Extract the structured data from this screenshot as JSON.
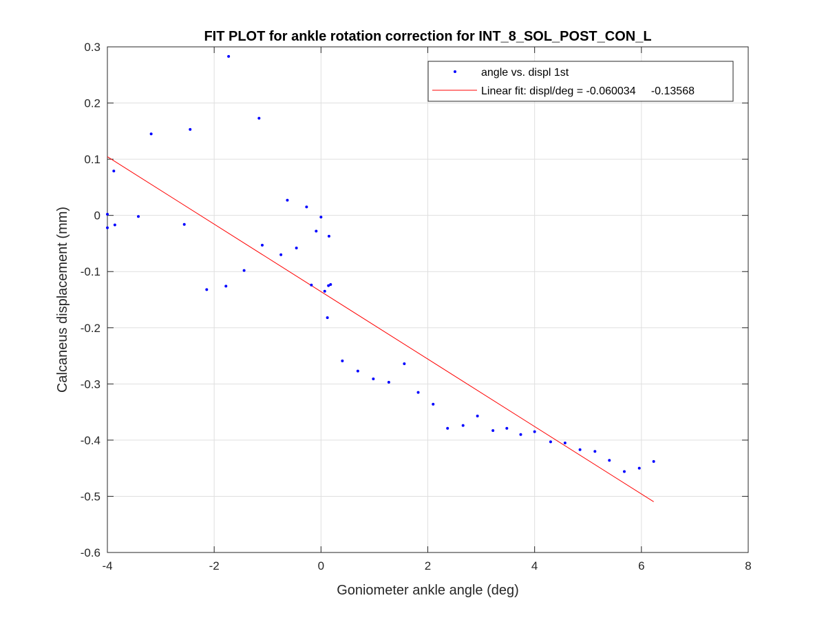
{
  "chart_data": {
    "type": "scatter",
    "title": "FIT PLOT for ankle rotation correction for INT_8_SOL_POST_CON_L",
    "xlabel": "Goniometer ankle angle (deg)",
    "ylabel": "Calcaneus displacement (mm)",
    "xlim": [
      -4,
      8
    ],
    "ylim": [
      -0.6,
      0.3
    ],
    "xticks": [
      -4,
      -2,
      0,
      2,
      4,
      6,
      8
    ],
    "yticks": [
      -0.6,
      -0.5,
      -0.4,
      -0.3,
      -0.2,
      -0.1,
      0,
      0.1,
      0.2,
      0.3
    ],
    "xtick_labels": [
      "-4",
      "-2",
      "0",
      "2",
      "4",
      "6",
      "8"
    ],
    "ytick_labels": [
      "-0.6",
      "-0.5",
      "-0.4",
      "-0.3",
      "-0.2",
      "-0.1",
      "0",
      "0.1",
      "0.2",
      "0.3"
    ],
    "grid": true,
    "legend_position": "top-right",
    "series": [
      {
        "name": "angle vs. displ 1st",
        "kind": "points",
        "color": "#0000ff",
        "points": [
          [
            -4.0,
            0.002
          ],
          [
            -4.0,
            -0.022
          ],
          [
            -3.88,
            0.079
          ],
          [
            -3.86,
            -0.017
          ],
          [
            -3.42,
            -0.002
          ],
          [
            -3.18,
            0.145
          ],
          [
            -2.56,
            -0.016
          ],
          [
            -2.45,
            0.153
          ],
          [
            -2.14,
            -0.132
          ],
          [
            -1.78,
            -0.126
          ],
          [
            -1.73,
            0.283
          ],
          [
            -1.44,
            -0.098
          ],
          [
            -1.16,
            0.173
          ],
          [
            -1.1,
            -0.053
          ],
          [
            -0.75,
            -0.07
          ],
          [
            -0.63,
            0.027
          ],
          [
            -0.46,
            -0.058
          ],
          [
            -0.27,
            0.015
          ],
          [
            -0.18,
            -0.124
          ],
          [
            -0.09,
            -0.028
          ],
          [
            0.0,
            -0.003
          ],
          [
            0.07,
            -0.135
          ],
          [
            0.12,
            -0.182
          ],
          [
            0.14,
            -0.125
          ],
          [
            0.15,
            -0.037
          ],
          [
            0.18,
            -0.123
          ],
          [
            0.4,
            -0.259
          ],
          [
            0.69,
            -0.277
          ],
          [
            0.98,
            -0.291
          ],
          [
            1.27,
            -0.297
          ],
          [
            1.56,
            -0.264
          ],
          [
            1.82,
            -0.315
          ],
          [
            2.1,
            -0.336
          ],
          [
            2.37,
            -0.379
          ],
          [
            2.66,
            -0.374
          ],
          [
            2.93,
            -0.357
          ],
          [
            3.22,
            -0.383
          ],
          [
            3.48,
            -0.379
          ],
          [
            3.74,
            -0.39
          ],
          [
            4.0,
            -0.385
          ],
          [
            4.3,
            -0.403
          ],
          [
            4.57,
            -0.405
          ],
          [
            4.85,
            -0.417
          ],
          [
            5.13,
            -0.42
          ],
          [
            5.4,
            -0.436
          ],
          [
            5.68,
            -0.456
          ],
          [
            5.96,
            -0.45
          ],
          [
            6.23,
            -0.438
          ]
        ]
      },
      {
        "name": "Linear fit: displ/deg = -0.060034     -0.13568",
        "kind": "line",
        "color": "#ff0000",
        "slope": -0.060034,
        "intercept": -0.13568,
        "x_range": [
          -4.0,
          6.23
        ]
      }
    ]
  }
}
